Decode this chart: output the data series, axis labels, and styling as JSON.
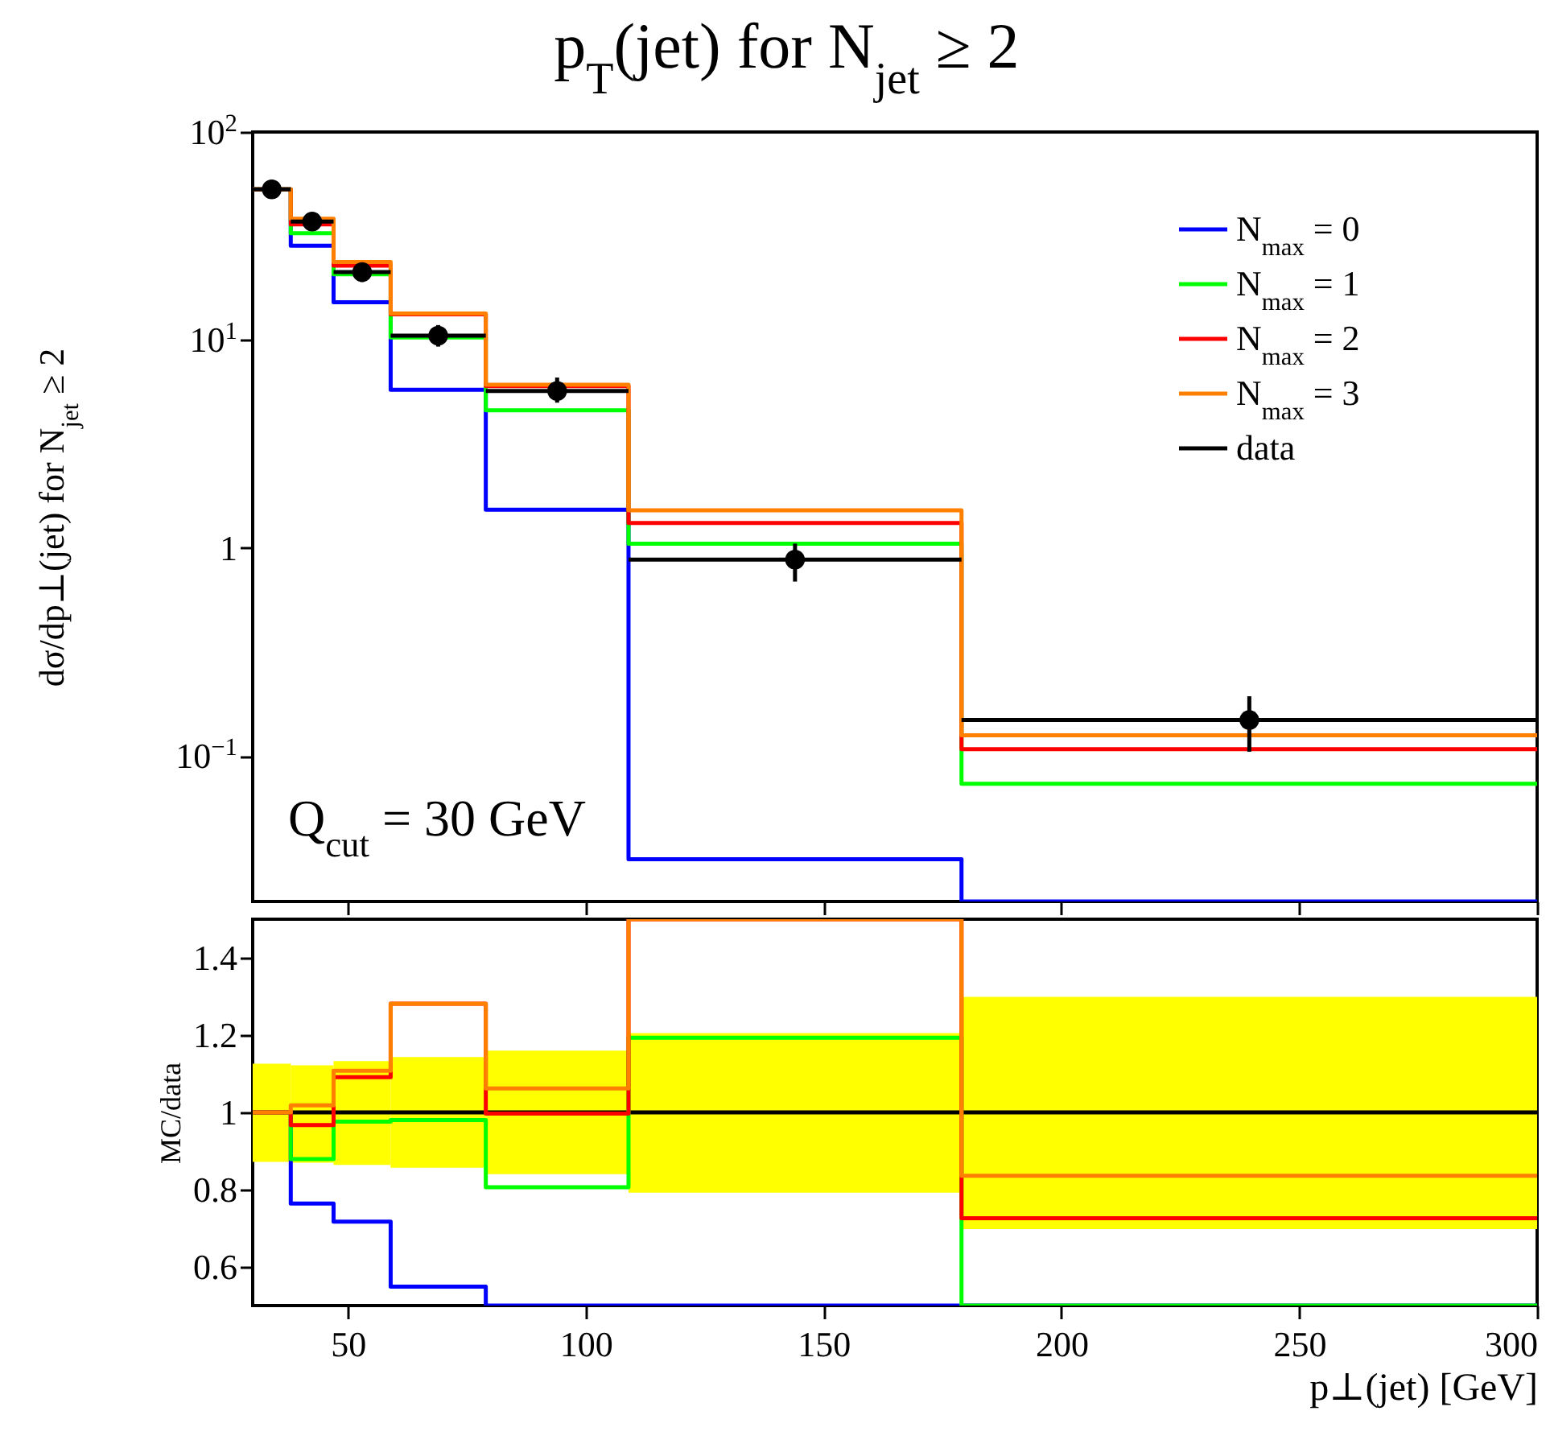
{
  "chart_data": [
    {
      "type": "histogram",
      "title": "p$_{T}$(jet) for N$_{jet}$ ≥ 2",
      "ylabel": "dσ/dp⊥(jet) for N$_{jet}$ ≥ 2",
      "bins": [
        30,
        38,
        47,
        59,
        79,
        109,
        179,
        300
      ],
      "series": [
        {
          "name": "N$_{max}$ = 0",
          "color": "#0000ff",
          "values": [
            53,
            28.4,
            15.2,
            5.76,
            1.53,
            0.0319,
            null
          ]
        },
        {
          "name": "N$_{max}$ = 1",
          "color": "#00ff00",
          "values": [
            53,
            32.6,
            20.7,
            10.3,
            4.59,
            1.05,
            0.0736
          ]
        },
        {
          "name": "N$_{max}$ = 2",
          "color": "#ff0000",
          "values": [
            53,
            36,
            22.8,
            13.3,
            6.0,
            1.32,
            0.108
          ]
        },
        {
          "name": "N$_{max}$ = 3",
          "color": "#ff7f00",
          "values": [
            53,
            38.3,
            23.7,
            13.4,
            6.1,
            1.52,
            0.126
          ]
        },
        {
          "name": "data",
          "type": "scatter",
          "marker": "circle",
          "color": "#000000",
          "x": [
            34,
            42.5,
            53,
            69,
            94,
            144,
            239.5
          ],
          "values": [
            53,
            37.1,
            21.2,
            10.5,
            5.69,
            0.88,
            0.149
          ],
          "errors": [
            [
              48,
              58
            ],
            [
              34,
              40
            ],
            [
              19,
              23.5
            ],
            [
              9.3,
              11.8
            ],
            [
              5.0,
              6.6
            ],
            [
              0.69,
              1.05
            ],
            [
              0.105,
              0.194
            ]
          ],
          "xerrors": [
            [
              30,
              38
            ],
            [
              38,
              47
            ],
            [
              47,
              59
            ],
            [
              59,
              79
            ],
            [
              79,
              109
            ],
            [
              109,
              179
            ],
            [
              179,
              300
            ]
          ]
        }
      ],
      "xlim": [
        30,
        300
      ],
      "xticks": [
        50,
        100,
        150,
        200,
        250,
        300
      ],
      "ylim": [
        0.02,
        100
      ],
      "yticks": [
        {
          "value": 0.1,
          "label": "10$^{−1}$"
        },
        1,
        {
          "value": 10,
          "label": "10$^{1}$"
        },
        {
          "value": 100,
          "label": "10$^{2}$"
        }
      ],
      "log": "y",
      "legend": "top right",
      "tick_labels": "y",
      "grid": false,
      "annotations": [
        "Q$_{cut}$ = 30 GeV"
      ]
    },
    {
      "type": "histogram",
      "xlabel": "p⊥(jet) [GeV]",
      "ylabel": "MC/data",
      "bins": [
        30,
        38,
        47,
        59,
        79,
        109,
        179,
        300
      ],
      "series": [
        {
          "color": "#ffff00",
          "base": [
            0.872,
            0.87,
            0.864,
            0.857,
            0.84,
            0.792,
            0.698
          ],
          "values": [
            0.254,
            0.252,
            0.269,
            0.286,
            0.32,
            0.413,
            0.601
          ]
        },
        {
          "color": "#000000",
          "values": [
            1,
            1,
            1,
            1,
            1,
            1,
            1
          ]
        },
        {
          "color": "#0000ff",
          "values": [
            1,
            0.764,
            0.717,
            0.549,
            null,
            null,
            null
          ]
        },
        {
          "color": "#00ff00",
          "values": [
            1,
            0.879,
            0.976,
            0.98,
            0.806,
            1.193,
            null
          ]
        },
        {
          "color": "#ff0000",
          "values": [
            1,
            0.967,
            1.091,
            1.281,
            0.997,
            1.5,
            0.726
          ]
        },
        {
          "color": "#ff7f00",
          "values": [
            1,
            1.018,
            1.108,
            1.281,
            1.062,
            1.5,
            0.836
          ]
        }
      ],
      "xlim": [
        30,
        300
      ],
      "xticks": [
        50,
        100,
        150,
        200,
        250,
        300
      ],
      "ylim": [
        0.5,
        1.5
      ],
      "yticks": [
        0.6,
        0.8,
        1,
        1.2,
        1.4
      ],
      "grid": false
    }
  ]
}
